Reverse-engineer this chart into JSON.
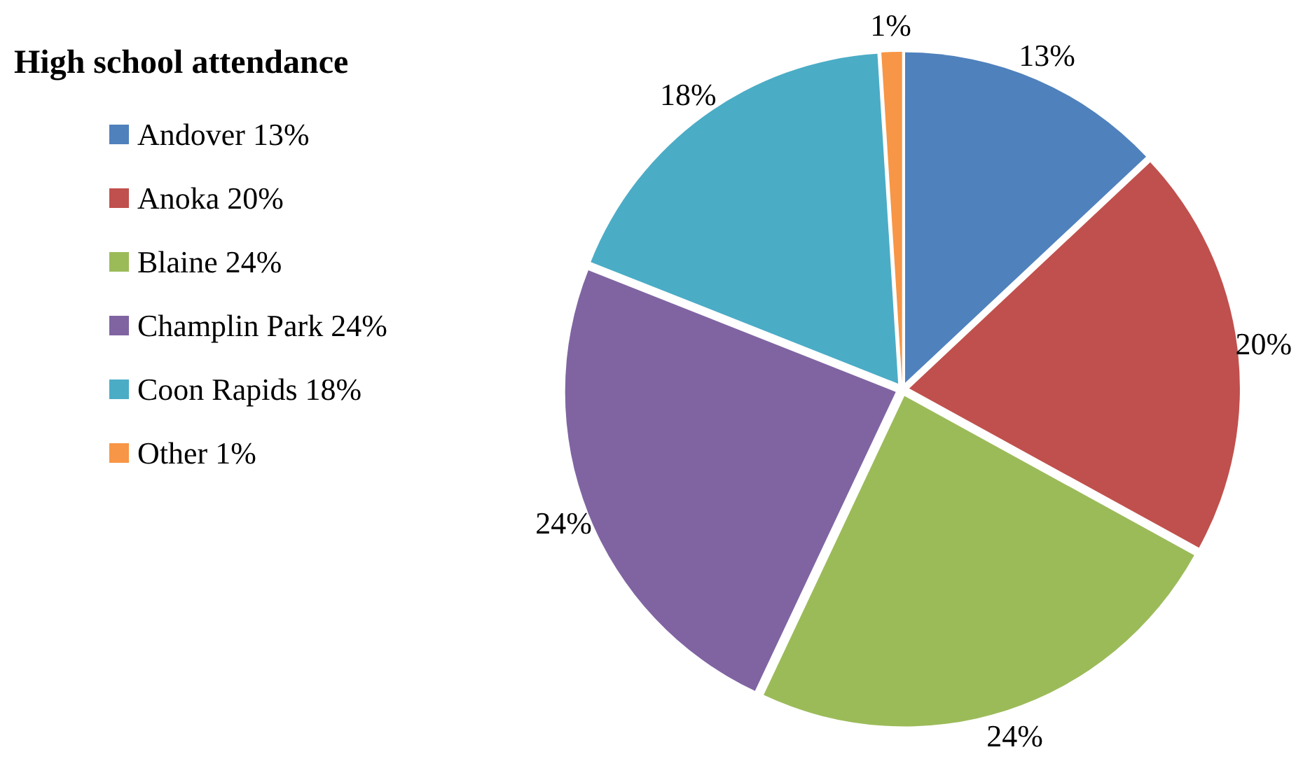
{
  "chart_data": {
    "type": "pie",
    "title": "High school attendance",
    "categories": [
      "Andover 13%",
      "Anoka 20%",
      "Blaine 24%",
      "Champlin Park 24%",
      "Coon Rapids 18%",
      "Other 1%"
    ],
    "values": [
      13,
      20,
      24,
      24,
      18,
      1
    ],
    "value_labels": [
      "13%",
      "20%",
      "24%",
      "24%",
      "18%",
      "1%"
    ],
    "colors": [
      "#4f81bd",
      "#c0504d",
      "#9bbb59",
      "#8064a2",
      "#4bacc6",
      "#f79646"
    ],
    "legend": "left"
  }
}
